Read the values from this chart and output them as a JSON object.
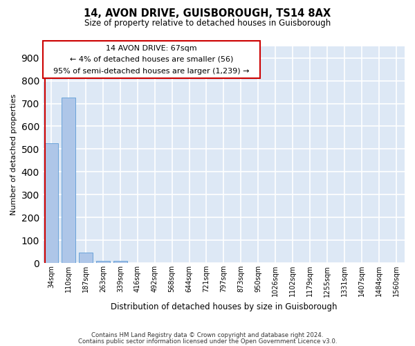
{
  "title": "14, AVON DRIVE, GUISBOROUGH, TS14 8AX",
  "subtitle": "Size of property relative to detached houses in Guisborough",
  "xlabel": "Distribution of detached houses by size in Guisborough",
  "ylabel": "Number of detached properties",
  "bar_labels": [
    "34sqm",
    "110sqm",
    "187sqm",
    "263sqm",
    "339sqm",
    "416sqm",
    "492sqm",
    "568sqm",
    "644sqm",
    "721sqm",
    "797sqm",
    "873sqm",
    "950sqm",
    "1026sqm",
    "1102sqm",
    "1179sqm",
    "1255sqm",
    "1331sqm",
    "1407sqm",
    "1484sqm",
    "1560sqm"
  ],
  "bar_values": [
    526,
    726,
    46,
    11,
    10,
    0,
    0,
    0,
    0,
    0,
    0,
    0,
    0,
    0,
    0,
    0,
    0,
    0,
    0,
    0,
    0
  ],
  "bar_color": "#aec6e8",
  "bar_edge_color": "#5b9bd5",
  "property_line_color": "#cc0000",
  "annotation_line1": "14 AVON DRIVE: 67sqm",
  "annotation_line2": "← 4% of detached houses are smaller (56)",
  "annotation_line3": "95% of semi-detached houses are larger (1,239) →",
  "annotation_box_color": "#cc0000",
  "annotation_text_color": "#000000",
  "ylim": [
    0,
    950
  ],
  "yticks": [
    0,
    100,
    200,
    300,
    400,
    500,
    600,
    700,
    800,
    900
  ],
  "background_color": "#dde8f5",
  "grid_color": "#ffffff",
  "footer_line1": "Contains HM Land Registry data © Crown copyright and database right 2024.",
  "footer_line2": "Contains public sector information licensed under the Open Government Licence v3.0."
}
